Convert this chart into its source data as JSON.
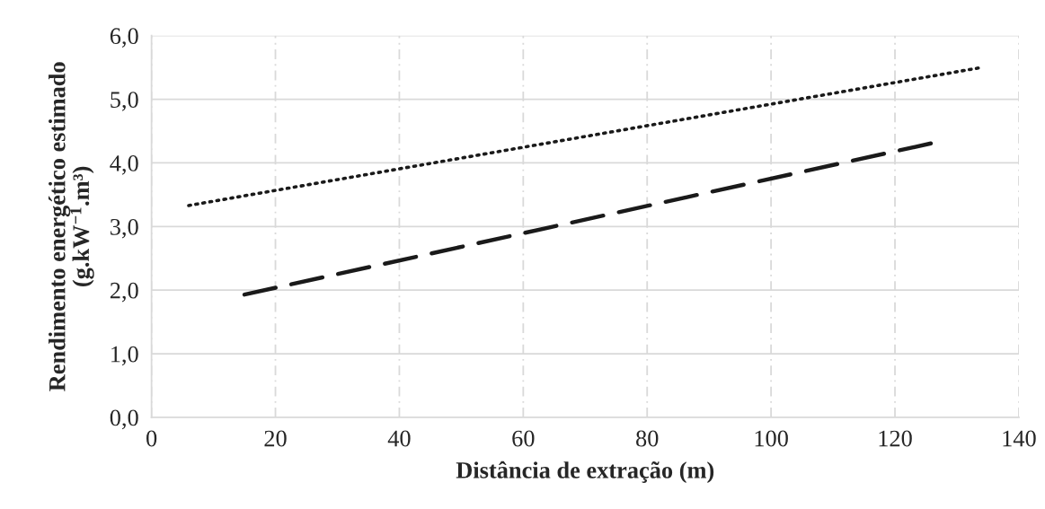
{
  "chart_data": {
    "type": "line",
    "xlabel": "Distância de extração (m)",
    "ylabel": "Rendimento energético estimado\n(g.kW$^{−1}$.m³)",
    "series": [
      {
        "color": "#1a1a1a",
        "line_style": "dotted",
        "x": [
          6,
          134
        ],
        "values": [
          3.33,
          5.5
        ]
      },
      {
        "color": "#1a1a1a",
        "line_style": "dashed",
        "x": [
          15,
          126
        ],
        "values": [
          1.93,
          4.31
        ]
      }
    ],
    "xlim": [
      0,
      140
    ],
    "xticks": [
      0,
      20,
      40,
      60,
      80,
      100,
      120,
      140
    ],
    "ylim": [
      0,
      6
    ],
    "yticks": [
      {
        "value": 0,
        "label": "0,0"
      },
      {
        "value": 1,
        "label": "1,0"
      },
      {
        "value": 2,
        "label": "2,0"
      },
      {
        "value": 3,
        "label": "3,0"
      },
      {
        "value": 4,
        "label": "4,0"
      },
      {
        "value": 5,
        "label": "5,0"
      },
      {
        "value": 6,
        "label": "6,0"
      }
    ],
    "grid": true,
    "legend": false,
    "marker": "none"
  }
}
